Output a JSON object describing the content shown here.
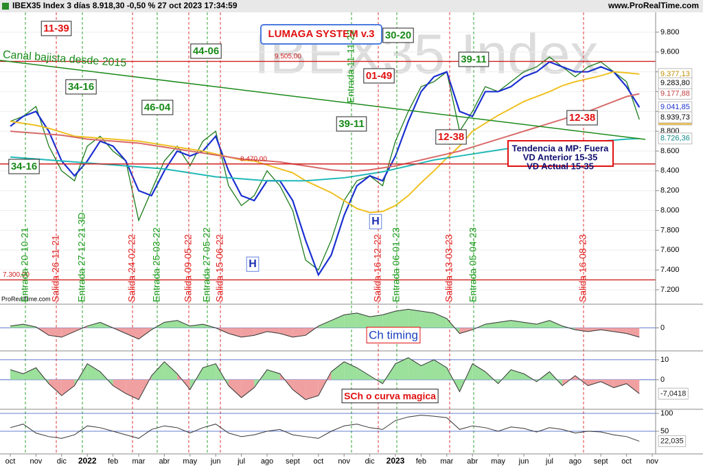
{
  "chart_data": [
    {
      "type": "line",
      "title": "IBEX35 Index 3 días 8.918,30 -0,50 % 27 oct 2023 17:34:59",
      "source": "www.ProRealTime.com",
      "watermark": "IBEX35 Index",
      "credit": "ProRealTime.com",
      "ylim": [
        7075,
        10000
      ],
      "yticks": [
        {
          "value": 7200,
          "label": "7.200"
        },
        {
          "value": 7400,
          "label": "7.400"
        },
        {
          "value": 7600,
          "label": "7.600"
        },
        {
          "value": 7800,
          "label": "7.800"
        },
        {
          "value": 8000,
          "label": "8.000"
        },
        {
          "value": 8200,
          "label": "8.200"
        },
        {
          "value": 8400,
          "label": "8.400"
        },
        {
          "value": 8600,
          "label": "8.600"
        },
        {
          "value": 8800,
          "label": "8.800"
        },
        {
          "value": 9000,
          "label": "9.000"
        },
        {
          "value": 9200,
          "label": "9.200"
        },
        {
          "value": 9400,
          "label": "9.400"
        },
        {
          "value": 9600,
          "label": "9.600"
        },
        {
          "value": 9800,
          "label": "9.800"
        }
      ],
      "grid": true,
      "series": [
        {
          "color": "#1a7a1a",
          "values": [
            8900,
            8950,
            9050,
            8650,
            8400,
            8300,
            8650,
            8750,
            8600,
            8500,
            7900,
            8200,
            8500,
            8650,
            8450,
            8700,
            8800,
            8250,
            8050,
            8150,
            8400,
            8250,
            8000,
            7500,
            7400,
            7700,
            8100,
            8300,
            8350,
            8250,
            8700,
            9000,
            9250,
            9300,
            9400,
            8800,
            9000,
            9250,
            9200,
            9300,
            9400,
            9450,
            9550,
            9450,
            9350,
            9450,
            9500,
            9400,
            9300,
            8918.3,
            null,
            null
          ],
          "value_labels": [
            null,
            null,
            null,
            null,
            null,
            null,
            null,
            null,
            null,
            null,
            null,
            null,
            null,
            null,
            null,
            null,
            null,
            null,
            null,
            null,
            null,
            null,
            null,
            null,
            null,
            null,
            null,
            null,
            null,
            null,
            null,
            null,
            null,
            null,
            null,
            null,
            null,
            null,
            null,
            null,
            null,
            null,
            null,
            null,
            null,
            null,
            null,
            null,
            null,
            "8.918,30",
            null,
            null
          ]
        },
        {
          "color": "#1a2fd0",
          "values": [
            8850,
            8950,
            9000,
            8800,
            8500,
            8350,
            8500,
            8700,
            8650,
            8500,
            8200,
            8150,
            8400,
            8600,
            8550,
            8600,
            8750,
            8400,
            8150,
            8100,
            8300,
            8300,
            8100,
            7700,
            7350,
            7550,
            7950,
            8250,
            8350,
            8300,
            8550,
            8900,
            9200,
            9350,
            9400,
            9000,
            8950,
            9200,
            9200,
            9250,
            9350,
            9400,
            9500,
            9450,
            9400,
            9400,
            9450,
            9400,
            9250,
            9041.85,
            null,
            null
          ],
          "value_labels": [
            null,
            null,
            null,
            null,
            null,
            null,
            null,
            null,
            null,
            null,
            null,
            null,
            null,
            null,
            null,
            null,
            null,
            null,
            null,
            null,
            null,
            null,
            null,
            null,
            null,
            null,
            null,
            null,
            null,
            null,
            null,
            null,
            null,
            null,
            null,
            null,
            null,
            null,
            null,
            null,
            null,
            null,
            null,
            null,
            null,
            null,
            null,
            null,
            null,
            "9.041,85",
            null,
            null
          ]
        },
        {
          "color": "#f0c020",
          "values": [
            8900,
            8880,
            8860,
            8830,
            8790,
            8750,
            8740,
            8730,
            8720,
            8710,
            8700,
            8680,
            8660,
            8640,
            8620,
            8600,
            8570,
            8540,
            8510,
            8500,
            8460,
            8420,
            8380,
            8300,
            8240,
            8180,
            8100,
            8020,
            7980,
            7990,
            8050,
            8150,
            8280,
            8400,
            8530,
            8650,
            8800,
            8880,
            8960,
            9030,
            9100,
            9150,
            9200,
            9260,
            9300,
            9330,
            9360,
            9400,
            9390,
            9377.13,
            null,
            null
          ],
          "value_labels": [
            null,
            null,
            null,
            null,
            null,
            null,
            null,
            null,
            null,
            null,
            null,
            null,
            null,
            null,
            null,
            null,
            null,
            null,
            null,
            null,
            null,
            null,
            null,
            null,
            null,
            null,
            null,
            null,
            null,
            null,
            null,
            null,
            null,
            null,
            null,
            null,
            null,
            null,
            null,
            null,
            null,
            null,
            null,
            null,
            null,
            null,
            null,
            null,
            null,
            "9.377,13",
            null,
            null
          ]
        },
        {
          "color": "#d86a6a",
          "values": [
            8800,
            8790,
            8780,
            8770,
            8760,
            8740,
            8720,
            8710,
            8700,
            8690,
            8680,
            8660,
            8640,
            8620,
            8600,
            8580,
            8560,
            8540,
            8520,
            8510,
            8500,
            8490,
            8470,
            8450,
            8430,
            8410,
            8400,
            8400,
            8410,
            8430,
            8450,
            8480,
            8510,
            8540,
            8570,
            8600,
            8640,
            8680,
            8720,
            8760,
            8800,
            8840,
            8880,
            8920,
            8960,
            9000,
            9050,
            9100,
            9150,
            9177.88,
            null,
            null
          ],
          "value_labels": [
            null,
            null,
            null,
            null,
            null,
            null,
            null,
            null,
            null,
            null,
            null,
            null,
            null,
            null,
            null,
            null,
            null,
            null,
            null,
            null,
            null,
            null,
            null,
            null,
            null,
            null,
            null,
            null,
            null,
            null,
            null,
            null,
            null,
            null,
            null,
            null,
            null,
            null,
            null,
            null,
            null,
            null,
            null,
            null,
            null,
            null,
            null,
            null,
            null,
            "9.177,88",
            null,
            null
          ]
        },
        {
          "color": "#20b8b8",
          "values": [
            8540,
            8530,
            8520,
            8510,
            8500,
            8490,
            8480,
            8470,
            8460,
            8450,
            8440,
            8430,
            8420,
            8400,
            8380,
            8360,
            8340,
            8330,
            8320,
            8310,
            8300,
            8300,
            8300,
            8300,
            8310,
            8320,
            8330,
            8350,
            8370,
            8390,
            8420,
            8450,
            8480,
            8510,
            8530,
            8550,
            8570,
            8590,
            8610,
            8630,
            8640,
            8650,
            8660,
            8670,
            8680,
            8690,
            8700,
            8710,
            8720,
            8726.36,
            null,
            null
          ],
          "value_labels": [
            null,
            null,
            null,
            null,
            null,
            null,
            null,
            null,
            null,
            null,
            null,
            null,
            null,
            null,
            null,
            null,
            null,
            null,
            null,
            null,
            null,
            null,
            null,
            null,
            null,
            null,
            null,
            null,
            null,
            null,
            null,
            null,
            null,
            null,
            null,
            null,
            null,
            null,
            null,
            null,
            null,
            null,
            null,
            null,
            null,
            null,
            null,
            null,
            null,
            "8.726,36",
            null,
            null
          ]
        }
      ],
      "price_labels": [
        {
          "value": 9283.8,
          "label": "9.283,80"
        },
        {
          "value": 8939.73,
          "label": "8.939,73"
        }
      ],
      "levels": [
        {
          "value": 9505,
          "label": "9.505,00"
        },
        {
          "value": 8470,
          "label": "8.470,00"
        },
        {
          "value": 7300,
          "label": "7.300,00"
        }
      ],
      "trendline": {
        "label": "Canal bajista desde 2015",
        "values": [
          9516,
          8718
        ],
        "color": "#1a8a1a"
      },
      "events": [
        "Entrada 20-10-21",
        "Salida 26-11-21",
        "Entrada 27-12-21 3D",
        "Salida 24-02-22",
        "Entrada 25-03-22",
        "Salida 09-05-22",
        "Entrada 27-05-22",
        "Salida 15-06-22",
        "Entrada 11-11-22",
        "Salida 16-12-22",
        "Entrada 06-01-23",
        "Salida 13-03-23",
        "Entrada 05-04-23",
        "Salida 16-08-23"
      ],
      "annotations": [
        "11-39",
        "34-16",
        "46-04",
        "44-06",
        "34-16",
        "01-49",
        "39-11",
        "30-20",
        "39-11",
        "12-38",
        "12-38"
      ],
      "markers": [
        "H",
        "H"
      ],
      "system": "LUMAGA SYSTEM v.3",
      "trend_box": [
        "Tendencia a MP: Fuera",
        "VD Anterior 15-35",
        "VD Actual 15-35"
      ]
    },
    {
      "type": "area",
      "title": "Ch timing",
      "ylim": [
        -1.2,
        1.2
      ],
      "yticks": [
        0
      ],
      "values": [
        0.1,
        0.2,
        0.05,
        -0.4,
        -0.5,
        -0.2,
        0.1,
        0.3,
        0.0,
        -0.3,
        -0.6,
        -0.1,
        0.3,
        0.4,
        0.1,
        0.2,
        0.0,
        -0.3,
        -0.5,
        -0.4,
        -0.2,
        -0.3,
        -0.5,
        -0.4,
        0.1,
        0.4,
        0.7,
        0.8,
        0.6,
        0.7,
        0.9,
        1.0,
        0.9,
        0.8,
        0.5,
        -0.3,
        -0.1,
        0.2,
        0.3,
        0.4,
        0.3,
        0.2,
        0.4,
        0.1,
        -0.1,
        -0.2,
        -0.1,
        -0.2,
        -0.3,
        -0.5,
        null,
        null
      ]
    },
    {
      "type": "area",
      "title": "SCh o curva magica",
      "ylim": [
        -14.5,
        14.1
      ],
      "yticks": [
        0,
        10
      ],
      "values": [
        5,
        3,
        6,
        -2,
        -8,
        -3,
        8,
        4,
        -3,
        -7,
        -10,
        2,
        9,
        3,
        -5,
        6,
        8,
        -3,
        -9,
        -4,
        5,
        3,
        -5,
        -10,
        -8,
        4,
        9,
        6,
        2,
        -2,
        8,
        11,
        7,
        10,
        6,
        -6,
        8,
        4,
        -2,
        5,
        3,
        -1,
        4,
        -3,
        2,
        -3,
        -1,
        -4,
        -2,
        -7.0418,
        null,
        null
      ],
      "value_labels": [
        null,
        null,
        null,
        null,
        null,
        null,
        null,
        null,
        null,
        null,
        null,
        null,
        null,
        null,
        null,
        null,
        null,
        null,
        null,
        null,
        null,
        null,
        null,
        null,
        null,
        null,
        null,
        null,
        null,
        null,
        null,
        null,
        null,
        null,
        null,
        null,
        null,
        null,
        null,
        null,
        null,
        null,
        null,
        null,
        null,
        null,
        null,
        null,
        null,
        "-7,0418",
        null,
        null
      ]
    },
    {
      "type": "line",
      "ylim": [
        -11.5,
        109.6
      ],
      "yticks": [
        50,
        100
      ],
      "values": [
        60,
        70,
        45,
        35,
        30,
        40,
        65,
        60,
        50,
        40,
        30,
        55,
        65,
        60,
        45,
        60,
        70,
        45,
        35,
        40,
        50,
        55,
        40,
        35,
        30,
        50,
        65,
        70,
        60,
        55,
        80,
        90,
        95,
        92,
        88,
        55,
        65,
        60,
        50,
        62,
        58,
        48,
        60,
        55,
        45,
        50,
        48,
        40,
        35,
        22.035,
        null,
        null
      ],
      "value_labels": [
        null,
        null,
        null,
        null,
        null,
        null,
        null,
        null,
        null,
        null,
        null,
        null,
        null,
        null,
        null,
        null,
        null,
        null,
        null,
        null,
        null,
        null,
        null,
        null,
        null,
        null,
        null,
        null,
        null,
        null,
        null,
        null,
        null,
        null,
        null,
        null,
        null,
        null,
        null,
        null,
        null,
        null,
        null,
        null,
        null,
        null,
        null,
        null,
        null,
        "22,035",
        null,
        null
      ],
      "categories": [
        "oct",
        null,
        "nov",
        null,
        "dic",
        null,
        "2022",
        null,
        "feb",
        null,
        "mar",
        null,
        "abr",
        null,
        "may",
        null,
        "jun",
        null,
        "jul",
        null,
        "ago",
        null,
        "sept",
        null,
        "oct",
        null,
        "nov",
        null,
        "dic",
        null,
        "2023",
        null,
        "feb",
        null,
        "mar",
        null,
        "abr",
        null,
        "may",
        null,
        "jun",
        null,
        "jul",
        null,
        "ago",
        null,
        "sept",
        null,
        "oct",
        null,
        "nov",
        null
      ]
    }
  ]
}
